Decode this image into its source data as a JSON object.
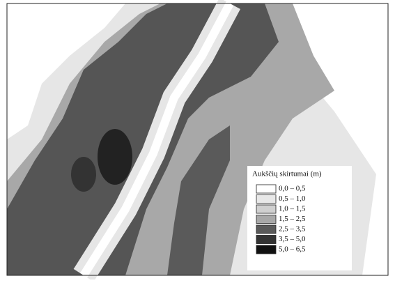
{
  "legend": {
    "title": "Aukščių skirtumai (m)",
    "items": [
      {
        "label": "0,0 – 0,5",
        "color": "#ffffff"
      },
      {
        "label": "0,5 – 1,0",
        "color": "#e8e8e8"
      },
      {
        "label": "1,0 – 1,5",
        "color": "#d0d0d0"
      },
      {
        "label": "1,5 – 2,5",
        "color": "#a8a8a8"
      },
      {
        "label": "2,5 – 3,5",
        "color": "#5a5a5a"
      },
      {
        "label": "3,5 – 5,0",
        "color": "#333333"
      },
      {
        "label": "5,0 –  6,5",
        "color": "#111111"
      }
    ]
  }
}
